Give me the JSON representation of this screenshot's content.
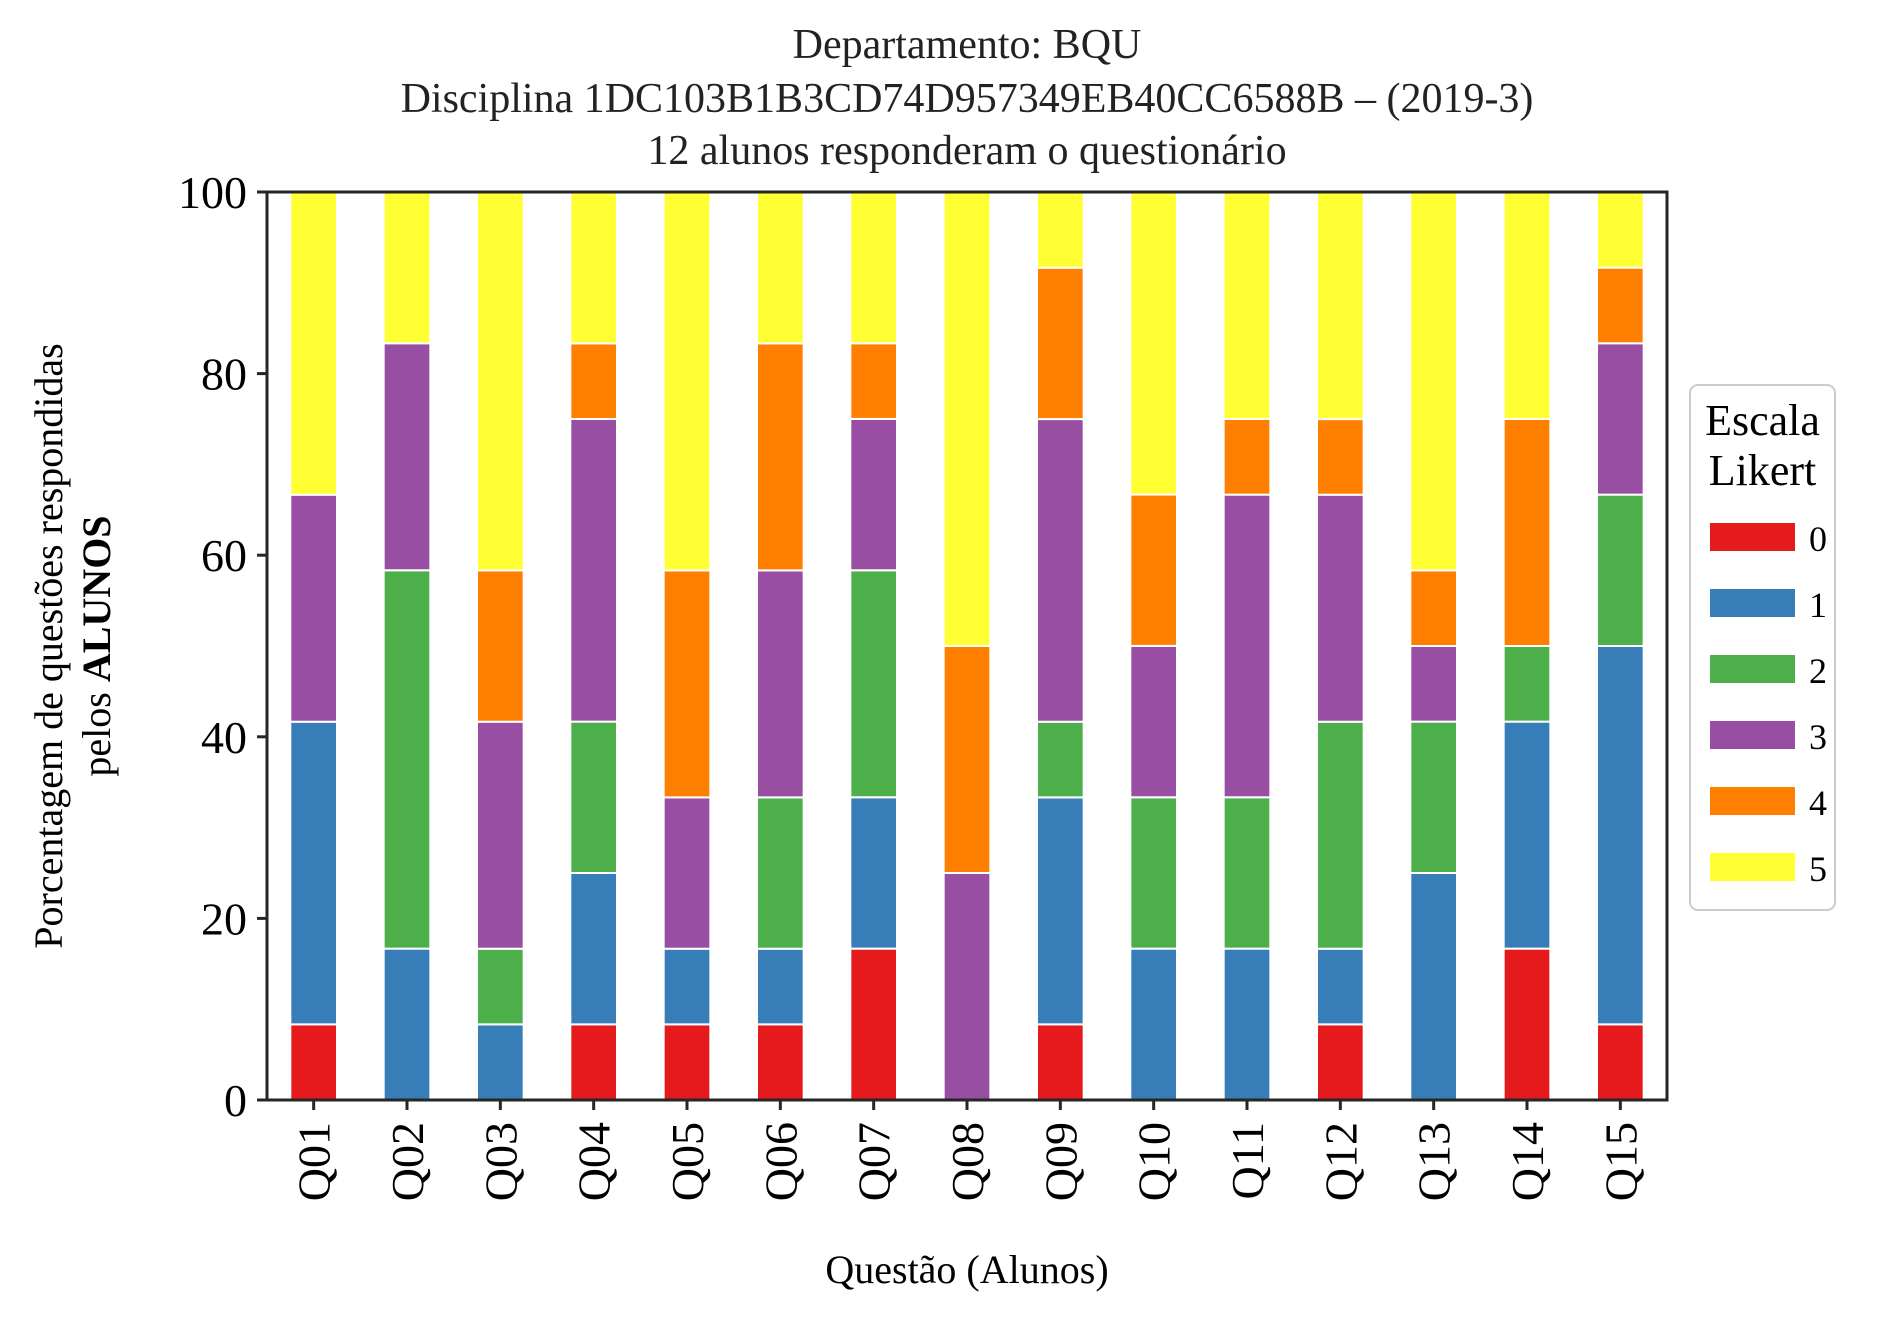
{
  "chart_data": {
    "type": "bar",
    "stacked": true,
    "title_lines": [
      "Departamento: BQU",
      "Disciplina 1DC103B1B3CD74D957349EB40CC6588B – (2019-3)",
      "12 alunos responderam o questionário"
    ],
    "xlabel": "Questão (Alunos)",
    "ylabel_line1": "Porcentagem de questões respondidas",
    "ylabel_line2_prefix": "pelos ",
    "ylabel_line2_bold": "ALUNOS",
    "ylim": [
      0,
      100
    ],
    "yticks": [
      "0",
      "20",
      "40",
      "60",
      "80",
      "100"
    ],
    "grid": false,
    "legend_position": "right",
    "legend_title_lines": [
      "Escala",
      "Likert"
    ],
    "categories": [
      "Q01",
      "Q02",
      "Q03",
      "Q04",
      "Q05",
      "Q06",
      "Q07",
      "Q08",
      "Q09",
      "Q10",
      "Q11",
      "Q12",
      "Q13",
      "Q14",
      "Q15"
    ],
    "series": [
      {
        "name": "0",
        "color": "#e41a1c",
        "values": [
          8.33,
          0,
          0,
          8.33,
          8.33,
          8.33,
          16.67,
          0,
          8.33,
          0,
          0,
          8.33,
          0,
          16.67,
          8.33
        ]
      },
      {
        "name": "1",
        "color": "#377eb8",
        "values": [
          33.33,
          16.67,
          8.33,
          16.67,
          8.33,
          8.33,
          16.67,
          0,
          25,
          16.67,
          16.67,
          8.33,
          25,
          25,
          41.67
        ]
      },
      {
        "name": "2",
        "color": "#4daf4a",
        "values": [
          0,
          41.67,
          8.33,
          16.67,
          0,
          16.67,
          25,
          0,
          8.33,
          16.67,
          16.67,
          25,
          16.67,
          8.33,
          16.67
        ]
      },
      {
        "name": "3",
        "color": "#984ea3",
        "values": [
          25,
          25,
          25,
          33.33,
          16.67,
          25,
          16.67,
          25,
          33.33,
          16.67,
          33.33,
          25,
          8.33,
          0,
          16.67
        ]
      },
      {
        "name": "4",
        "color": "#ff7f00",
        "values": [
          0,
          0,
          16.67,
          8.33,
          25,
          25,
          8.33,
          25,
          16.67,
          16.67,
          8.33,
          8.33,
          8.33,
          25,
          8.33
        ]
      },
      {
        "name": "5",
        "color": "#ffff33",
        "values": [
          33.33,
          16.67,
          41.67,
          16.67,
          41.67,
          16.67,
          16.67,
          50,
          8.33,
          33.33,
          25,
          25,
          41.67,
          25,
          8.33
        ]
      }
    ]
  }
}
